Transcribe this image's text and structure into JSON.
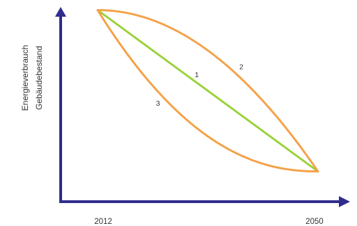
{
  "chart_data": {
    "type": "line",
    "title": "",
    "ylabel": [
      "Energieverbrauch",
      "Gebäudebestand"
    ],
    "xlabel": "",
    "x_ticks": [
      "2012",
      "2050"
    ],
    "x": [
      2012,
      2050
    ],
    "ylim": [
      0,
      1
    ],
    "grid": false,
    "legend": "none",
    "series": [
      {
        "label": "1",
        "shape": "linear",
        "color": "#9bd23c",
        "start": 0.95,
        "end": 0.15
      },
      {
        "label": "2",
        "shape": "concave",
        "color": "#f4a24a",
        "start": 0.95,
        "end": 0.15
      },
      {
        "label": "3",
        "shape": "convex",
        "color": "#f4a24a",
        "start": 0.95,
        "end": 0.15
      }
    ],
    "axis_color": "#2f2c8c"
  }
}
